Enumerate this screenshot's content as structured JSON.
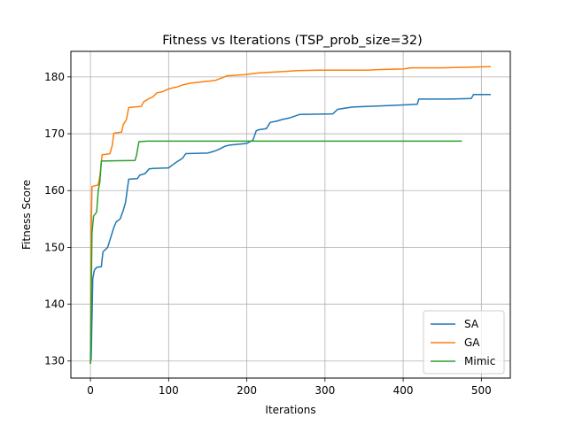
{
  "chart_data": {
    "type": "line",
    "title": "Fitness vs Iterations (TSP_prob_size=32)",
    "xlabel": "Iterations",
    "ylabel": "Fitness Score",
    "xlim": [
      -25,
      537
    ],
    "ylim": [
      127,
      184.5
    ],
    "xticks": [
      0,
      100,
      200,
      300,
      400,
      500
    ],
    "yticks": [
      130,
      140,
      150,
      160,
      170,
      180
    ],
    "grid": true,
    "legend_position": "lower right",
    "series": [
      {
        "name": "SA",
        "color": "#1f77b4",
        "points": [
          [
            0,
            130.0
          ],
          [
            1,
            130.3
          ],
          [
            3,
            144.5
          ],
          [
            5,
            146.0
          ],
          [
            8,
            146.5
          ],
          [
            14,
            146.6
          ],
          [
            16,
            149.2
          ],
          [
            22,
            150.0
          ],
          [
            30,
            153.5
          ],
          [
            33,
            154.5
          ],
          [
            38,
            155.0
          ],
          [
            42,
            156.5
          ],
          [
            45,
            158.0
          ],
          [
            47,
            160.0
          ],
          [
            49,
            162.0
          ],
          [
            60,
            162.1
          ],
          [
            63,
            162.7
          ],
          [
            70,
            163.0
          ],
          [
            75,
            163.8
          ],
          [
            80,
            163.9
          ],
          [
            100,
            164.0
          ],
          [
            105,
            164.5
          ],
          [
            110,
            165.0
          ],
          [
            118,
            165.7
          ],
          [
            122,
            166.5
          ],
          [
            150,
            166.6
          ],
          [
            158,
            166.9
          ],
          [
            165,
            167.3
          ],
          [
            172,
            167.8
          ],
          [
            178,
            168.0
          ],
          [
            200,
            168.3
          ],
          [
            208,
            168.9
          ],
          [
            212,
            170.5
          ],
          [
            215,
            170.7
          ],
          [
            225,
            170.9
          ],
          [
            230,
            172.0
          ],
          [
            238,
            172.2
          ],
          [
            245,
            172.5
          ],
          [
            255,
            172.8
          ],
          [
            268,
            173.4
          ],
          [
            310,
            173.5
          ],
          [
            316,
            174.3
          ],
          [
            325,
            174.5
          ],
          [
            335,
            174.7
          ],
          [
            388,
            175.0
          ],
          [
            418,
            175.2
          ],
          [
            420,
            176.1
          ],
          [
            460,
            176.1
          ],
          [
            487,
            176.2
          ],
          [
            490,
            176.9
          ],
          [
            512,
            176.9
          ]
        ]
      },
      {
        "name": "GA",
        "color": "#ff7f0e",
        "points": [
          [
            0,
            129.5
          ],
          [
            1,
            152.0
          ],
          [
            2,
            160.7
          ],
          [
            10,
            161.0
          ],
          [
            12,
            162.5
          ],
          [
            15,
            166.3
          ],
          [
            20,
            166.4
          ],
          [
            25,
            166.5
          ],
          [
            28,
            168.0
          ],
          [
            30,
            170.1
          ],
          [
            40,
            170.3
          ],
          [
            42,
            171.6
          ],
          [
            46,
            172.5
          ],
          [
            49,
            174.6
          ],
          [
            55,
            174.7
          ],
          [
            65,
            174.8
          ],
          [
            68,
            175.6
          ],
          [
            75,
            176.2
          ],
          [
            80,
            176.5
          ],
          [
            85,
            177.2
          ],
          [
            92,
            177.4
          ],
          [
            100,
            177.9
          ],
          [
            110,
            178.2
          ],
          [
            118,
            178.6
          ],
          [
            128,
            178.9
          ],
          [
            140,
            179.1
          ],
          [
            160,
            179.4
          ],
          [
            175,
            180.2
          ],
          [
            198,
            180.4
          ],
          [
            215,
            180.7
          ],
          [
            240,
            180.9
          ],
          [
            265,
            181.1
          ],
          [
            290,
            181.2
          ],
          [
            355,
            181.2
          ],
          [
            370,
            181.3
          ],
          [
            400,
            181.4
          ],
          [
            410,
            181.6
          ],
          [
            450,
            181.6
          ],
          [
            480,
            181.7
          ],
          [
            512,
            181.8
          ]
        ]
      },
      {
        "name": "Mimic",
        "color": "#2ca02c",
        "points": [
          [
            0,
            129.5
          ],
          [
            2,
            152.5
          ],
          [
            4,
            155.5
          ],
          [
            8,
            156.2
          ],
          [
            10,
            160.0
          ],
          [
            12,
            161.5
          ],
          [
            14,
            165.2
          ],
          [
            57,
            165.3
          ],
          [
            59,
            166.2
          ],
          [
            62,
            168.6
          ],
          [
            73,
            168.7
          ],
          [
            475,
            168.7
          ]
        ]
      }
    ]
  }
}
